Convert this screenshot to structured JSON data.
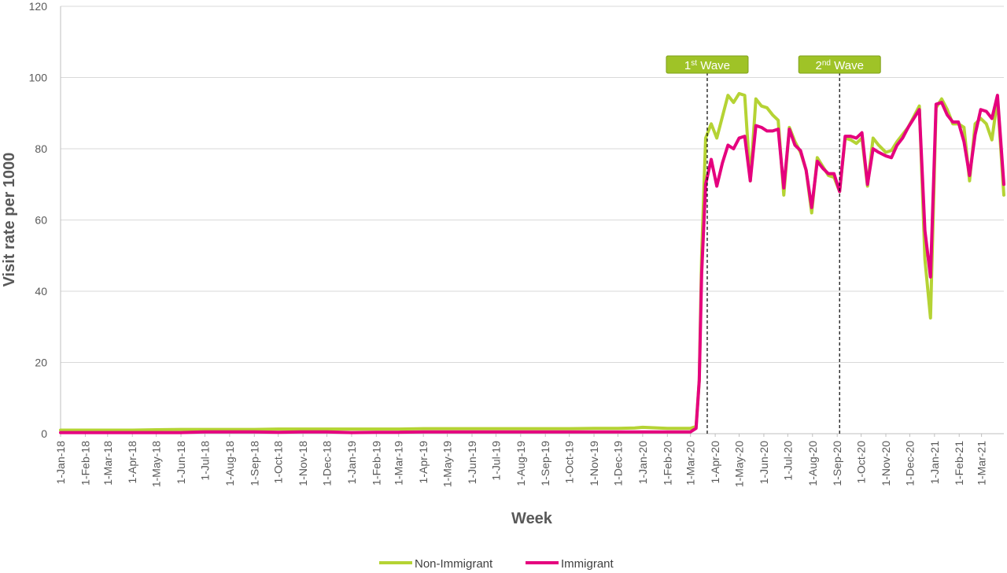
{
  "chart_data": {
    "type": "line",
    "title": "",
    "xlabel": "Week",
    "ylabel": "Visit rate per 1000",
    "ylim": [
      0,
      120
    ],
    "yticks": [
      0,
      20,
      40,
      60,
      80,
      100,
      120
    ],
    "grid": "horizontal",
    "legend_position": "bottom-center",
    "x_tick_labels": [
      "1-Jan-18",
      "1-Feb-18",
      "1-Mar-18",
      "1-Apr-18",
      "1-May-18",
      "1-Jun-18",
      "1-Jul-18",
      "1-Aug-18",
      "1-Sep-18",
      "1-Oct-18",
      "1-Nov-18",
      "1-Dec-18",
      "1-Jan-19",
      "1-Feb-19",
      "1-Mar-19",
      "1-Apr-19",
      "1-May-19",
      "1-Jun-19",
      "1-Jul-19",
      "1-Aug-19",
      "1-Sep-19",
      "1-Oct-19",
      "1-Nov-19",
      "1-Dec-19",
      "1-Jan-20",
      "1-Feb-20",
      "1-Mar-20",
      "1-Apr-20",
      "1-May-20",
      "1-Jun-20",
      "1-Jul-20",
      "1-Aug-20",
      "1-Sep-20",
      "1-Oct-20",
      "1-Nov-20",
      "1-Dec-20",
      "1-Jan-21",
      "1-Feb-21",
      "1-Mar-21"
    ],
    "x_start": "2018-01-01",
    "x_end": "2021-03-29",
    "annotations": [
      {
        "base": "1",
        "sup": "st",
        "text": " Wave",
        "x": "2020-03-22"
      },
      {
        "base": "2",
        "sup": "nd",
        "text": " Wave",
        "x": "2020-09-04"
      }
    ],
    "series": [
      {
        "name": "Non-Immigrant",
        "color": "#b5d334",
        "points": [
          [
            "2018-01-01",
            1.0
          ],
          [
            "2018-02-01",
            1.0
          ],
          [
            "2018-03-01",
            1.0
          ],
          [
            "2018-04-01",
            1.0
          ],
          [
            "2018-05-01",
            1.1
          ],
          [
            "2018-06-01",
            1.2
          ],
          [
            "2018-07-01",
            1.2
          ],
          [
            "2018-08-01",
            1.2
          ],
          [
            "2018-09-01",
            1.2
          ],
          [
            "2018-10-01",
            1.3
          ],
          [
            "2018-11-01",
            1.3
          ],
          [
            "2018-12-01",
            1.3
          ],
          [
            "2019-01-01",
            1.3
          ],
          [
            "2019-02-01",
            1.3
          ],
          [
            "2019-03-01",
            1.3
          ],
          [
            "2019-04-01",
            1.4
          ],
          [
            "2019-05-01",
            1.4
          ],
          [
            "2019-06-01",
            1.4
          ],
          [
            "2019-07-01",
            1.4
          ],
          [
            "2019-08-01",
            1.4
          ],
          [
            "2019-09-01",
            1.4
          ],
          [
            "2019-10-01",
            1.4
          ],
          [
            "2019-11-01",
            1.5
          ],
          [
            "2019-12-01",
            1.5
          ],
          [
            "2019-12-22",
            1.6
          ],
          [
            "2020-01-01",
            1.8
          ],
          [
            "2020-02-01",
            1.5
          ],
          [
            "2020-03-01",
            1.5
          ],
          [
            "2020-03-08",
            2.0
          ],
          [
            "2020-03-12",
            15.0
          ],
          [
            "2020-03-15",
            50.0
          ],
          [
            "2020-03-20",
            83.0
          ],
          [
            "2020-03-27",
            87.0
          ],
          [
            "2020-04-03",
            83.0
          ],
          [
            "2020-04-10",
            89.0
          ],
          [
            "2020-04-17",
            95.0
          ],
          [
            "2020-04-24",
            93.0
          ],
          [
            "2020-05-01",
            95.5
          ],
          [
            "2020-05-08",
            95.0
          ],
          [
            "2020-05-15",
            71.0
          ],
          [
            "2020-05-22",
            94.0
          ],
          [
            "2020-05-29",
            92.0
          ],
          [
            "2020-06-05",
            91.5
          ],
          [
            "2020-06-12",
            89.5
          ],
          [
            "2020-06-19",
            88.0
          ],
          [
            "2020-06-26",
            67.0
          ],
          [
            "2020-07-03",
            86.0
          ],
          [
            "2020-07-10",
            82.0
          ],
          [
            "2020-07-17",
            79.0
          ],
          [
            "2020-07-24",
            74.0
          ],
          [
            "2020-07-31",
            62.0
          ],
          [
            "2020-08-07",
            77.5
          ],
          [
            "2020-08-14",
            75.0
          ],
          [
            "2020-08-21",
            72.5
          ],
          [
            "2020-08-28",
            72.0
          ],
          [
            "2020-09-04",
            68.0
          ],
          [
            "2020-09-11",
            83.0
          ],
          [
            "2020-09-18",
            82.5
          ],
          [
            "2020-09-25",
            81.5
          ],
          [
            "2020-10-02",
            83.0
          ],
          [
            "2020-10-09",
            69.5
          ],
          [
            "2020-10-16",
            83.0
          ],
          [
            "2020-10-23",
            81.0
          ],
          [
            "2020-11-01",
            79.0
          ],
          [
            "2020-11-08",
            79.5
          ],
          [
            "2020-11-15",
            82.0
          ],
          [
            "2020-11-22",
            84.0
          ],
          [
            "2020-11-29",
            86.0
          ],
          [
            "2020-12-06",
            89.0
          ],
          [
            "2020-12-13",
            92.0
          ],
          [
            "2020-12-20",
            49.0
          ],
          [
            "2020-12-27",
            32.5
          ],
          [
            "2021-01-03",
            91.5
          ],
          [
            "2021-01-10",
            94.0
          ],
          [
            "2021-01-17",
            91.0
          ],
          [
            "2021-01-24",
            87.0
          ],
          [
            "2021-01-31",
            87.0
          ],
          [
            "2021-02-07",
            86.0
          ],
          [
            "2021-02-14",
            71.0
          ],
          [
            "2021-02-21",
            87.0
          ],
          [
            "2021-02-28",
            88.5
          ],
          [
            "2021-03-07",
            87.0
          ],
          [
            "2021-03-14",
            82.5
          ],
          [
            "2021-03-21",
            94.0
          ],
          [
            "2021-03-29",
            67.0
          ]
        ]
      },
      {
        "name": "Immigrant",
        "color": "#e5007e",
        "points": [
          [
            "2018-01-01",
            0.3
          ],
          [
            "2018-02-01",
            0.3
          ],
          [
            "2018-03-01",
            0.3
          ],
          [
            "2018-04-01",
            0.3
          ],
          [
            "2018-05-01",
            0.3
          ],
          [
            "2018-06-01",
            0.3
          ],
          [
            "2018-07-01",
            0.5
          ],
          [
            "2018-08-01",
            0.5
          ],
          [
            "2018-09-01",
            0.5
          ],
          [
            "2018-10-01",
            0.4
          ],
          [
            "2018-11-01",
            0.5
          ],
          [
            "2018-12-01",
            0.5
          ],
          [
            "2019-01-01",
            0.3
          ],
          [
            "2019-02-01",
            0.4
          ],
          [
            "2019-03-01",
            0.4
          ],
          [
            "2019-04-01",
            0.5
          ],
          [
            "2019-05-01",
            0.5
          ],
          [
            "2019-06-01",
            0.5
          ],
          [
            "2019-07-01",
            0.5
          ],
          [
            "2019-08-01",
            0.5
          ],
          [
            "2019-09-01",
            0.5
          ],
          [
            "2019-10-01",
            0.5
          ],
          [
            "2019-11-01",
            0.5
          ],
          [
            "2019-12-01",
            0.5
          ],
          [
            "2020-01-01",
            0.5
          ],
          [
            "2020-02-01",
            0.5
          ],
          [
            "2020-03-01",
            0.5
          ],
          [
            "2020-03-08",
            1.5
          ],
          [
            "2020-03-12",
            15.0
          ],
          [
            "2020-03-15",
            45.0
          ],
          [
            "2020-03-20",
            70.0
          ],
          [
            "2020-03-27",
            77.0
          ],
          [
            "2020-04-03",
            69.5
          ],
          [
            "2020-04-10",
            76.0
          ],
          [
            "2020-04-17",
            81.0
          ],
          [
            "2020-04-24",
            80.0
          ],
          [
            "2020-05-01",
            83.0
          ],
          [
            "2020-05-08",
            83.5
          ],
          [
            "2020-05-15",
            71.0
          ],
          [
            "2020-05-22",
            86.5
          ],
          [
            "2020-05-29",
            86.0
          ],
          [
            "2020-06-05",
            85.0
          ],
          [
            "2020-06-12",
            85.0
          ],
          [
            "2020-06-19",
            85.5
          ],
          [
            "2020-06-26",
            69.0
          ],
          [
            "2020-07-03",
            85.5
          ],
          [
            "2020-07-10",
            81.0
          ],
          [
            "2020-07-17",
            79.5
          ],
          [
            "2020-07-24",
            74.0
          ],
          [
            "2020-07-31",
            63.5
          ],
          [
            "2020-08-07",
            76.5
          ],
          [
            "2020-08-14",
            74.5
          ],
          [
            "2020-08-21",
            73.0
          ],
          [
            "2020-08-28",
            73.0
          ],
          [
            "2020-09-04",
            68.0
          ],
          [
            "2020-09-11",
            83.5
          ],
          [
            "2020-09-18",
            83.5
          ],
          [
            "2020-09-25",
            83.0
          ],
          [
            "2020-10-02",
            84.5
          ],
          [
            "2020-10-09",
            70.0
          ],
          [
            "2020-10-16",
            80.0
          ],
          [
            "2020-10-23",
            79.0
          ],
          [
            "2020-11-01",
            78.0
          ],
          [
            "2020-11-08",
            77.5
          ],
          [
            "2020-11-15",
            81.0
          ],
          [
            "2020-11-22",
            83.0
          ],
          [
            "2020-11-29",
            86.0
          ],
          [
            "2020-12-06",
            88.5
          ],
          [
            "2020-12-13",
            91.0
          ],
          [
            "2020-12-20",
            57.0
          ],
          [
            "2020-12-27",
            44.0
          ],
          [
            "2021-01-03",
            92.5
          ],
          [
            "2021-01-10",
            93.0
          ],
          [
            "2021-01-17",
            89.5
          ],
          [
            "2021-01-24",
            87.5
          ],
          [
            "2021-01-31",
            87.5
          ],
          [
            "2021-02-07",
            82.0
          ],
          [
            "2021-02-14",
            72.5
          ],
          [
            "2021-02-21",
            84.0
          ],
          [
            "2021-02-28",
            91.0
          ],
          [
            "2021-03-07",
            90.5
          ],
          [
            "2021-03-14",
            88.5
          ],
          [
            "2021-03-21",
            95.0
          ],
          [
            "2021-03-29",
            70.0
          ]
        ]
      }
    ]
  }
}
